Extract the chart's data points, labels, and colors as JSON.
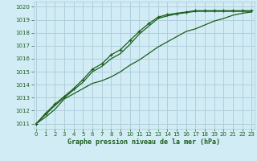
{
  "xlabel": "Graphe pression niveau de la mer (hPa)",
  "bg_color": "#d2ecf5",
  "grid_color": "#aecfdc",
  "line_color": "#1a5e1a",
  "ylim": [
    1010.6,
    1020.4
  ],
  "xlim": [
    -0.3,
    23.3
  ],
  "yticks": [
    1011,
    1012,
    1013,
    1014,
    1015,
    1016,
    1017,
    1018,
    1019,
    1020
  ],
  "xticks": [
    0,
    1,
    2,
    3,
    4,
    5,
    6,
    7,
    8,
    9,
    10,
    11,
    12,
    13,
    14,
    15,
    16,
    17,
    18,
    19,
    20,
    21,
    22,
    23
  ],
  "x": [
    0,
    1,
    2,
    3,
    4,
    5,
    6,
    7,
    8,
    9,
    10,
    11,
    12,
    13,
    14,
    15,
    16,
    17,
    18,
    19,
    20,
    21,
    22,
    23
  ],
  "y_upper": [
    1011.0,
    1011.8,
    1012.5,
    1013.1,
    1013.7,
    1014.4,
    1015.2,
    1015.6,
    1016.3,
    1016.7,
    1017.4,
    1018.1,
    1018.7,
    1019.2,
    1019.4,
    1019.5,
    1019.6,
    1019.7,
    1019.7,
    1019.7,
    1019.7,
    1019.7,
    1019.7,
    1019.7
  ],
  "y_main": [
    1011.0,
    1011.7,
    1012.4,
    1013.0,
    1013.6,
    1014.2,
    1015.0,
    1015.4,
    1016.0,
    1016.4,
    1017.1,
    1017.9,
    1018.5,
    1019.1,
    1019.3,
    1019.45,
    1019.55,
    1019.65,
    1019.65,
    1019.65,
    1019.65,
    1019.65,
    1019.65,
    1019.65
  ],
  "y_lower": [
    1011.0,
    1011.5,
    1012.1,
    1012.9,
    1013.3,
    1013.7,
    1014.1,
    1014.3,
    1014.6,
    1015.0,
    1015.5,
    1015.9,
    1016.4,
    1016.9,
    1017.3,
    1017.7,
    1018.1,
    1018.3,
    1018.6,
    1018.9,
    1019.1,
    1019.35,
    1019.5,
    1019.6
  ]
}
